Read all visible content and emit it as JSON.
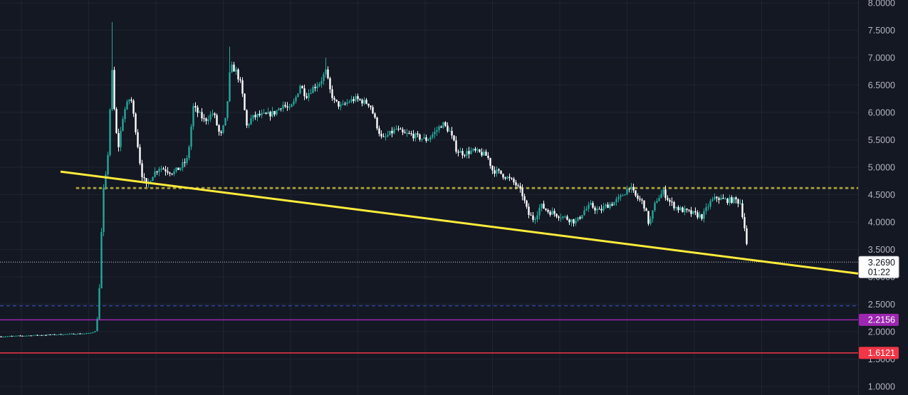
{
  "theme": {
    "background": "#141823",
    "grid": "#1f2430",
    "axis_text": "#b2b5be",
    "up_color": "#26a69a",
    "down_color": "#ffffff",
    "trendline": "#ffeb3b",
    "resistance_dots": "#a59a3a",
    "dashed_level": "#3f5bd6",
    "purple_level": "#9c27b0",
    "red_level": "#f23645",
    "price_line": "#d1d4dc"
  },
  "chart_data": {
    "type": "candlestick",
    "y_axis": {
      "min": 1.0,
      "max": 8.0,
      "ticks": [
        "1.0000",
        "1.5000",
        "2.0000",
        "2.5000",
        "3.0000",
        "3.5000",
        "4.0000",
        "4.5000",
        "5.0000",
        "5.5000",
        "6.0000",
        "6.5000",
        "7.0000",
        "7.5000",
        "8.0000"
      ]
    },
    "grid": true,
    "last_price": {
      "value": "3.2690",
      "timer": "01:22"
    },
    "levels": [
      {
        "name": "purple-level",
        "value": 2.2156,
        "label": "2.2156",
        "style": "solid"
      },
      {
        "name": "red-level",
        "value": 1.6121,
        "label": "1.6121",
        "style": "solid"
      },
      {
        "name": "blue-dashed-level",
        "value": 2.47,
        "label": "",
        "style": "dashed"
      },
      {
        "name": "resistance-dotted-level",
        "value": 4.62,
        "label": "",
        "style": "dotted"
      }
    ],
    "trendline": {
      "start": {
        "bar": 85,
        "price": 4.92
      },
      "end": {
        "bar": 1205,
        "price": 3.06
      }
    },
    "price_path": [
      [
        0,
        1.91
      ],
      [
        60,
        1.94
      ],
      [
        125,
        1.97
      ],
      [
        133,
        2.02
      ],
      [
        136,
        2.3
      ],
      [
        139,
        3.1
      ],
      [
        143,
        4.5
      ],
      [
        148,
        4.9
      ],
      [
        152,
        5.6
      ],
      [
        155,
        7.0
      ],
      [
        158,
        6.2
      ],
      [
        164,
        5.3
      ],
      [
        172,
        6.0
      ],
      [
        182,
        6.3
      ],
      [
        190,
        5.6
      ],
      [
        197,
        4.9
      ],
      [
        204,
        4.65
      ],
      [
        212,
        4.85
      ],
      [
        222,
        5.0
      ],
      [
        232,
        4.95
      ],
      [
        242,
        4.9
      ],
      [
        252,
        5.0
      ],
      [
        262,
        5.15
      ],
      [
        270,
        6.1
      ],
      [
        276,
        6.0
      ],
      [
        286,
        5.85
      ],
      [
        298,
        6.0
      ],
      [
        308,
        5.55
      ],
      [
        316,
        5.9
      ],
      [
        322,
        6.85
      ],
      [
        330,
        6.75
      ],
      [
        337,
        6.5
      ],
      [
        345,
        5.75
      ],
      [
        352,
        5.9
      ],
      [
        362,
        5.95
      ],
      [
        372,
        5.95
      ],
      [
        385,
        6.0
      ],
      [
        395,
        6.15
      ],
      [
        405,
        6.05
      ],
      [
        412,
        6.2
      ],
      [
        420,
        6.5
      ],
      [
        428,
        6.3
      ],
      [
        438,
        6.45
      ],
      [
        448,
        6.55
      ],
      [
        456,
        6.75
      ],
      [
        462,
        6.4
      ],
      [
        468,
        6.2
      ],
      [
        478,
        6.1
      ],
      [
        488,
        6.2
      ],
      [
        498,
        6.25
      ],
      [
        508,
        6.2
      ],
      [
        518,
        6.15
      ],
      [
        528,
        5.75
      ],
      [
        535,
        5.5
      ],
      [
        545,
        5.6
      ],
      [
        555,
        5.7
      ],
      [
        565,
        5.6
      ],
      [
        575,
        5.6
      ],
      [
        585,
        5.55
      ],
      [
        598,
        5.5
      ],
      [
        610,
        5.65
      ],
      [
        620,
        5.8
      ],
      [
        630,
        5.65
      ],
      [
        640,
        5.3
      ],
      [
        650,
        5.25
      ],
      [
        662,
        5.3
      ],
      [
        675,
        5.25
      ],
      [
        683,
        5.2
      ],
      [
        690,
        4.95
      ],
      [
        700,
        4.9
      ],
      [
        712,
        4.8
      ],
      [
        722,
        4.7
      ],
      [
        732,
        4.5
      ],
      [
        740,
        4.15
      ],
      [
        748,
        4.05
      ],
      [
        758,
        4.3
      ],
      [
        768,
        4.2
      ],
      [
        778,
        4.15
      ],
      [
        788,
        4.1
      ],
      [
        798,
        4.05
      ],
      [
        808,
        4.0
      ],
      [
        818,
        4.2
      ],
      [
        828,
        4.3
      ],
      [
        840,
        4.2
      ],
      [
        850,
        4.3
      ],
      [
        860,
        4.35
      ],
      [
        870,
        4.45
      ],
      [
        876,
        4.55
      ],
      [
        882,
        4.65
      ],
      [
        892,
        4.45
      ],
      [
        902,
        4.35
      ],
      [
        910,
        3.95
      ],
      [
        920,
        4.4
      ],
      [
        930,
        4.55
      ],
      [
        940,
        4.35
      ],
      [
        950,
        4.25
      ],
      [
        960,
        4.2
      ],
      [
        972,
        4.15
      ],
      [
        985,
        4.1
      ],
      [
        995,
        4.35
      ],
      [
        1005,
        4.45
      ],
      [
        1015,
        4.4
      ],
      [
        1025,
        4.4
      ],
      [
        1032,
        4.4
      ],
      [
        1038,
        4.35
      ],
      [
        1043,
        4.0
      ],
      [
        1047,
        3.6
      ],
      [
        1049,
        3.27
      ]
    ],
    "notable_highs": [
      {
        "bar": 155,
        "value": 7.65
      },
      {
        "bar": 321,
        "value": 7.2
      },
      {
        "bar": 455,
        "value": 7.0
      }
    ]
  }
}
